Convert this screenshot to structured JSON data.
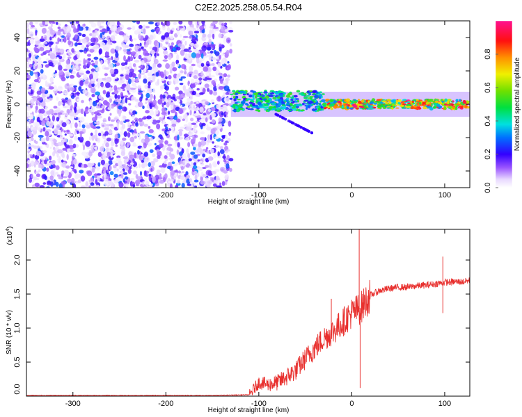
{
  "title": "C2E2.2025.258.05.54.R04",
  "chart_data": [
    {
      "type": "heatmap",
      "xlabel": "Height of straight line (km)",
      "ylabel": "Frequency (Hz)",
      "xlim": [
        -350,
        127
      ],
      "ylim": [
        -50,
        50
      ],
      "x_ticks": [
        -300,
        -200,
        -100,
        0,
        100
      ],
      "y_ticks": [
        -40,
        -20,
        0,
        20,
        40
      ],
      "colorbar": {
        "label": "Normalized spectral amplitude",
        "range": [
          0,
          1
        ],
        "ticks": [
          "0.0",
          "0.2",
          "0.4",
          "0.6",
          "0.8"
        ],
        "tick_values": [
          0,
          0.2,
          0.4,
          0.6,
          0.8
        ]
      },
      "regions": [
        {
          "description": "noise",
          "x_range": [
            -350,
            -130
          ],
          "freq_range": [
            -50,
            50
          ],
          "amplitude": 0.15
        },
        {
          "description": "signal band",
          "x_range": [
            -130,
            127
          ],
          "freq_center": 0,
          "freq_halfwidth": 3,
          "amplitude_range": [
            0.4,
            1.0
          ]
        },
        {
          "description": "lower branch",
          "x_range": [
            -85,
            -40
          ],
          "freq_range": [
            -5,
            -18
          ],
          "amplitude": 0.2
        }
      ]
    },
    {
      "type": "line",
      "xlabel": "Height of straight line (km)",
      "ylabel": "SNR (10 * v/v)",
      "y_scale_label": "(x10",
      "y_scale_exp": "4",
      "xlim": [
        -350,
        127
      ],
      "ylim": [
        0,
        2.45
      ],
      "x_ticks": [
        -300,
        -200,
        -100,
        0,
        100
      ],
      "y_ticks": [
        "0.0",
        "0.5",
        "1.0",
        "1.5",
        "2.0"
      ],
      "y_tick_values": [
        0,
        0.5,
        1.0,
        1.5,
        2.0
      ],
      "color": "#e8302e",
      "x": [
        -350,
        -300,
        -250,
        -200,
        -150,
        -110,
        -100,
        -90,
        -80,
        -70,
        -60,
        -50,
        -40,
        -30,
        -20,
        -10,
        0,
        10,
        20,
        30,
        40,
        50,
        60,
        70,
        80,
        90,
        100,
        110,
        120,
        127
      ],
      "y": [
        0.01,
        0.01,
        0.01,
        0.01,
        0.01,
        0.02,
        0.2,
        0.17,
        0.2,
        0.28,
        0.38,
        0.55,
        0.7,
        0.85,
        0.95,
        1.08,
        1.22,
        1.3,
        1.48,
        1.55,
        1.58,
        1.6,
        1.6,
        1.62,
        1.63,
        1.65,
        1.67,
        1.68,
        1.68,
        1.7
      ],
      "spikes": [
        {
          "x": 8,
          "y": 2.45
        },
        {
          "x": 9,
          "y": 0.12
        },
        {
          "x": 98,
          "y": 2.05
        },
        {
          "x": 98,
          "y": 1.22
        },
        {
          "x": -22,
          "y": 1.43
        }
      ]
    }
  ]
}
